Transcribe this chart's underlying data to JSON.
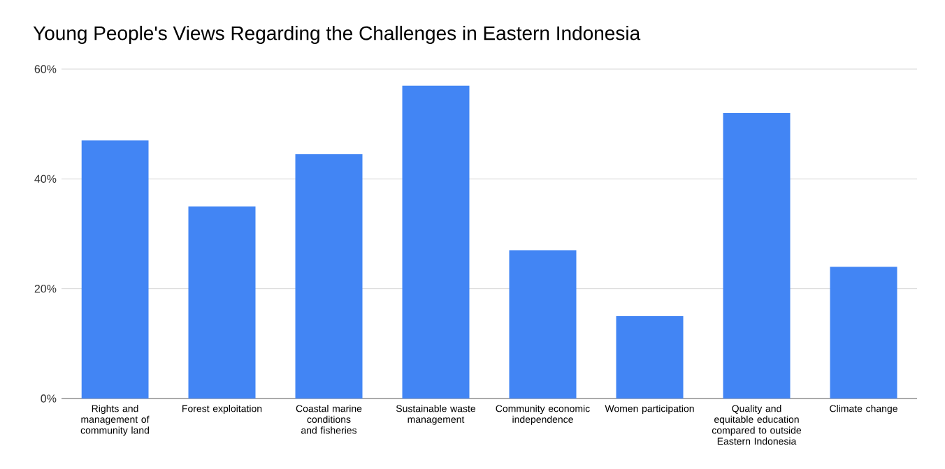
{
  "chart_data": {
    "type": "bar",
    "title": "Young People's Views Regarding the Challenges in Eastern Indonesia",
    "categories": [
      "Rights and management of community land",
      "Forest exploitation",
      "Coastal marine conditions and fisheries",
      "Sustainable waste management",
      "Community economic independence",
      "Women participation",
      "Quality and equitable education compared to outside Eastern Indonesia",
      "Climate change"
    ],
    "values": [
      47,
      35,
      44.5,
      57,
      27,
      15,
      52,
      24
    ],
    "color": "#4285f4",
    "ylim": [
      0,
      60
    ],
    "yticks": [
      {
        "value": 0,
        "label": "0%"
      },
      {
        "value": 20,
        "label": "20%"
      },
      {
        "value": 40,
        "label": "40%"
      },
      {
        "value": 60,
        "label": "60%"
      }
    ],
    "grid": "y"
  }
}
